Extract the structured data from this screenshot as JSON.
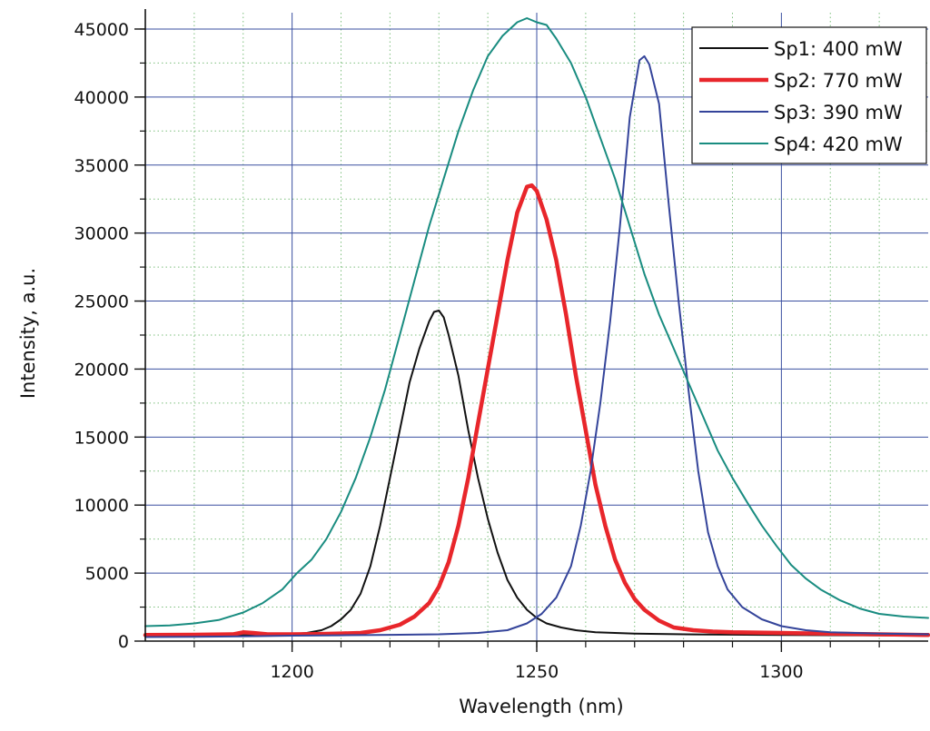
{
  "chart_data": {
    "type": "line",
    "xlabel": "Wavelength (nm)",
    "ylabel": "Intensity, a.u.",
    "xlim": [
      1170,
      1330
    ],
    "ylim": [
      0,
      46200
    ],
    "x_ticks": [
      1200,
      1250,
      1300
    ],
    "x_minor_step": 10,
    "y_ticks": [
      0,
      5000,
      10000,
      15000,
      20000,
      25000,
      30000,
      35000,
      40000,
      45000
    ],
    "y_minor_step": 2500,
    "grid": true,
    "legend_position": "top-right",
    "colors": {
      "grid_major": "#3a4fa0",
      "grid_minor": "#7dbf7d"
    },
    "series": [
      {
        "name": "Sp1: 400 mW",
        "color": "#111111",
        "width": 2,
        "points": [
          [
            1170,
            380
          ],
          [
            1180,
            400
          ],
          [
            1190,
            430
          ],
          [
            1195,
            450
          ],
          [
            1200,
            520
          ],
          [
            1203,
            600
          ],
          [
            1206,
            800
          ],
          [
            1208,
            1100
          ],
          [
            1210,
            1600
          ],
          [
            1212,
            2300
          ],
          [
            1214,
            3500
          ],
          [
            1216,
            5500
          ],
          [
            1218,
            8500
          ],
          [
            1220,
            12000
          ],
          [
            1222,
            15500
          ],
          [
            1224,
            19000
          ],
          [
            1226,
            21500
          ],
          [
            1228,
            23500
          ],
          [
            1229,
            24200
          ],
          [
            1230,
            24300
          ],
          [
            1231,
            23800
          ],
          [
            1232,
            22500
          ],
          [
            1234,
            19500
          ],
          [
            1236,
            15500
          ],
          [
            1238,
            12000
          ],
          [
            1240,
            9000
          ],
          [
            1242,
            6500
          ],
          [
            1244,
            4500
          ],
          [
            1246,
            3200
          ],
          [
            1248,
            2300
          ],
          [
            1250,
            1700
          ],
          [
            1252,
            1300
          ],
          [
            1255,
            1000
          ],
          [
            1258,
            800
          ],
          [
            1262,
            650
          ],
          [
            1270,
            550
          ],
          [
            1280,
            500
          ],
          [
            1300,
            450
          ],
          [
            1320,
            420
          ],
          [
            1330,
            400
          ]
        ]
      },
      {
        "name": "Sp2: 770 mW",
        "color": "#e8262b",
        "width": 4.5,
        "points": [
          [
            1170,
            450
          ],
          [
            1180,
            470
          ],
          [
            1188,
            500
          ],
          [
            1190,
            650
          ],
          [
            1192,
            600
          ],
          [
            1195,
            500
          ],
          [
            1200,
            500
          ],
          [
            1205,
            520
          ],
          [
            1210,
            560
          ],
          [
            1214,
            600
          ],
          [
            1218,
            800
          ],
          [
            1222,
            1200
          ],
          [
            1225,
            1800
          ],
          [
            1228,
            2800
          ],
          [
            1230,
            4000
          ],
          [
            1232,
            5800
          ],
          [
            1234,
            8500
          ],
          [
            1236,
            12000
          ],
          [
            1238,
            16000
          ],
          [
            1240,
            20000
          ],
          [
            1242,
            24000
          ],
          [
            1244,
            28000
          ],
          [
            1246,
            31500
          ],
          [
            1248,
            33400
          ],
          [
            1249,
            33500
          ],
          [
            1250,
            33100
          ],
          [
            1252,
            31000
          ],
          [
            1254,
            28000
          ],
          [
            1256,
            24000
          ],
          [
            1258,
            19500
          ],
          [
            1260,
            15500
          ],
          [
            1262,
            11500
          ],
          [
            1264,
            8500
          ],
          [
            1266,
            6000
          ],
          [
            1268,
            4300
          ],
          [
            1270,
            3100
          ],
          [
            1272,
            2300
          ],
          [
            1275,
            1500
          ],
          [
            1278,
            1000
          ],
          [
            1282,
            800
          ],
          [
            1286,
            700
          ],
          [
            1290,
            650
          ],
          [
            1300,
            600
          ],
          [
            1310,
            550
          ],
          [
            1320,
            500
          ],
          [
            1330,
            450
          ]
        ]
      },
      {
        "name": "Sp3: 390 mW",
        "color": "#34449a",
        "width": 2,
        "points": [
          [
            1170,
            300
          ],
          [
            1180,
            320
          ],
          [
            1190,
            350
          ],
          [
            1200,
            400
          ],
          [
            1210,
            430
          ],
          [
            1220,
            460
          ],
          [
            1230,
            500
          ],
          [
            1238,
            600
          ],
          [
            1244,
            800
          ],
          [
            1248,
            1300
          ],
          [
            1251,
            2000
          ],
          [
            1254,
            3200
          ],
          [
            1257,
            5500
          ],
          [
            1259,
            8500
          ],
          [
            1261,
            12500
          ],
          [
            1263,
            17500
          ],
          [
            1265,
            23500
          ],
          [
            1267,
            30500
          ],
          [
            1269,
            38500
          ],
          [
            1271,
            42700
          ],
          [
            1272,
            43000
          ],
          [
            1273,
            42400
          ],
          [
            1275,
            39500
          ],
          [
            1277,
            32000
          ],
          [
            1279,
            25000
          ],
          [
            1281,
            18500
          ],
          [
            1283,
            12500
          ],
          [
            1285,
            8000
          ],
          [
            1287,
            5500
          ],
          [
            1289,
            3800
          ],
          [
            1292,
            2500
          ],
          [
            1296,
            1600
          ],
          [
            1300,
            1100
          ],
          [
            1305,
            800
          ],
          [
            1310,
            650
          ],
          [
            1320,
            550
          ],
          [
            1330,
            500
          ]
        ]
      },
      {
        "name": "Sp4: 420 mW",
        "color": "#198c80",
        "width": 2,
        "points": [
          [
            1170,
            1100
          ],
          [
            1175,
            1150
          ],
          [
            1180,
            1300
          ],
          [
            1185,
            1550
          ],
          [
            1190,
            2100
          ],
          [
            1194,
            2800
          ],
          [
            1198,
            3800
          ],
          [
            1201,
            5000
          ],
          [
            1204,
            6000
          ],
          [
            1207,
            7500
          ],
          [
            1210,
            9500
          ],
          [
            1213,
            12000
          ],
          [
            1216,
            15000
          ],
          [
            1219,
            18500
          ],
          [
            1222,
            22500
          ],
          [
            1225,
            26500
          ],
          [
            1228,
            30500
          ],
          [
            1231,
            34000
          ],
          [
            1234,
            37500
          ],
          [
            1237,
            40500
          ],
          [
            1240,
            43000
          ],
          [
            1243,
            44500
          ],
          [
            1246,
            45500
          ],
          [
            1248,
            45800
          ],
          [
            1250,
            45500
          ],
          [
            1252,
            45300
          ],
          [
            1254,
            44300
          ],
          [
            1257,
            42500
          ],
          [
            1260,
            40000
          ],
          [
            1263,
            37000
          ],
          [
            1266,
            34000
          ],
          [
            1269,
            30500
          ],
          [
            1272,
            27000
          ],
          [
            1275,
            24000
          ],
          [
            1278,
            21500
          ],
          [
            1281,
            19000
          ],
          [
            1284,
            16500
          ],
          [
            1287,
            14000
          ],
          [
            1290,
            12000
          ],
          [
            1293,
            10200
          ],
          [
            1296,
            8500
          ],
          [
            1299,
            7000
          ],
          [
            1302,
            5600
          ],
          [
            1305,
            4600
          ],
          [
            1308,
            3800
          ],
          [
            1312,
            3000
          ],
          [
            1316,
            2400
          ],
          [
            1320,
            2000
          ],
          [
            1325,
            1800
          ],
          [
            1330,
            1700
          ]
        ]
      }
    ]
  }
}
